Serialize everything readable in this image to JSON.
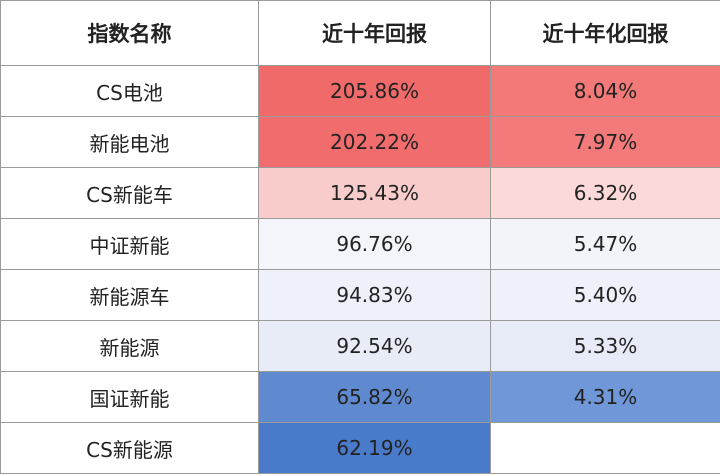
{
  "table": {
    "header": [
      "指数名称",
      "近十年回报",
      "近十年化回报"
    ],
    "rows": [
      [
        "CS电池",
        "205.86%",
        "8.04%"
      ],
      [
        "新能电池",
        "202.22%",
        "7.97%"
      ],
      [
        "CS新能车",
        "125.43%",
        "6.32%"
      ],
      [
        "中证新能",
        "96.76%",
        "5.47%"
      ],
      [
        "新能源车",
        "94.83%",
        "5.40%"
      ],
      [
        "新能源",
        "92.54%",
        "5.33%"
      ],
      [
        "国证新能",
        "65.82%",
        "4.31%"
      ],
      [
        "CS新能源",
        "62.19%",
        null
      ]
    ]
  }
}
